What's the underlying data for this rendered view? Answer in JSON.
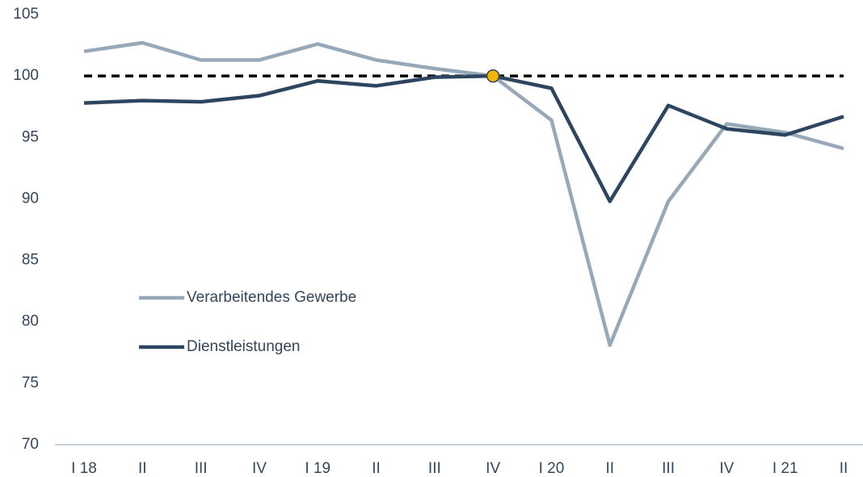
{
  "chart_data": {
    "type": "line",
    "categories": [
      "I 18",
      "II",
      "III",
      "IV",
      "I 19",
      "II",
      "III",
      "IV",
      "I 20",
      "II",
      "III",
      "IV",
      "I 21",
      "II"
    ],
    "series": [
      {
        "name": "Verarbeitendes Gewerbe",
        "color": "#97a8b8",
        "values": [
          102.0,
          102.7,
          101.3,
          101.3,
          102.6,
          101.3,
          100.6,
          100.0,
          96.4,
          78.1,
          89.8,
          96.1,
          95.4,
          94.1
        ]
      },
      {
        "name": "Dienstleistungen",
        "color": "#2e4560",
        "values": [
          97.8,
          98.0,
          97.9,
          98.4,
          99.6,
          99.2,
          99.9,
          100.0,
          99.0,
          89.8,
          97.6,
          95.7,
          95.2,
          96.7
        ]
      }
    ],
    "ylim": [
      70,
      105
    ],
    "yticks": [
      70,
      75,
      80,
      85,
      90,
      95,
      100,
      105
    ],
    "reference_line": {
      "value": 100,
      "color": "#000000",
      "dashed": true
    },
    "highlight": {
      "index": 7,
      "color": "#f2b705"
    },
    "legend": "left"
  }
}
